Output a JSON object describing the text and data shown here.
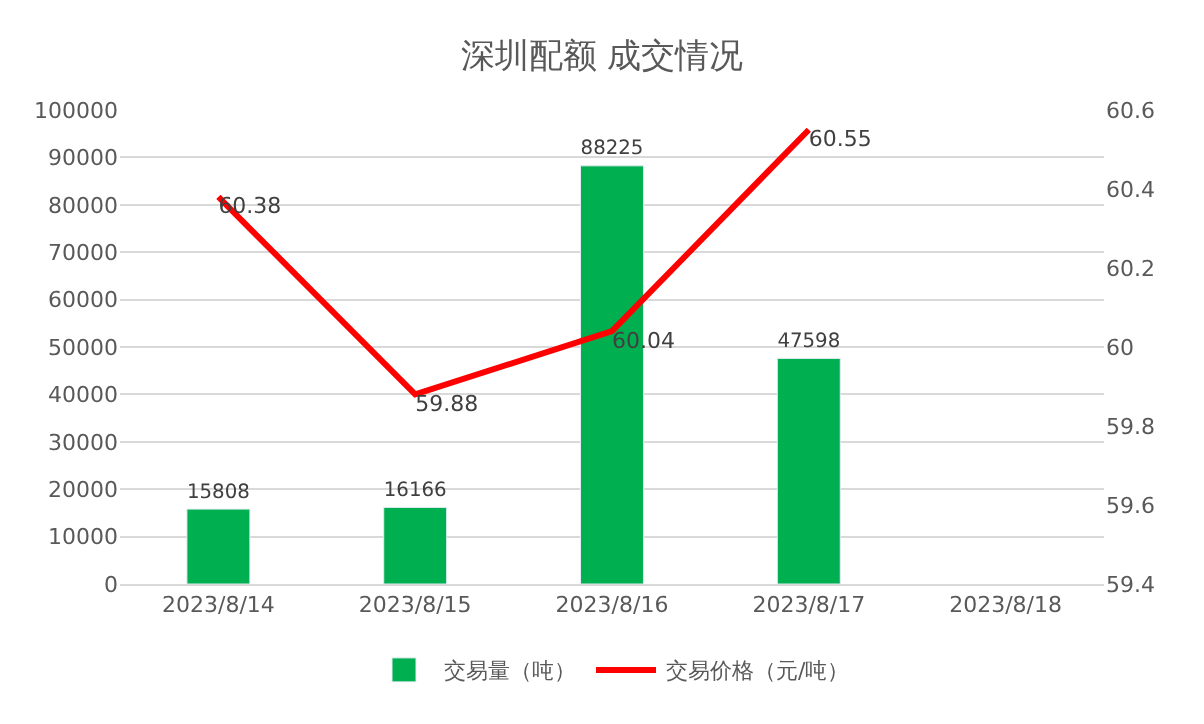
{
  "chart_data": {
    "type": "bar",
    "title": "深圳配额 成交情况",
    "categories": [
      "2023/8/14",
      "2023/8/15",
      "2023/8/16",
      "2023/8/17",
      "2023/8/18"
    ],
    "series": [
      {
        "name": "交易量（吨）",
        "color": "#00b050",
        "values": [
          15808,
          16166,
          88225,
          47598,
          null
        ]
      },
      {
        "name": "交易价格（元/吨）",
        "type": "line",
        "axis": "y2",
        "color": "#ff0000",
        "values": [
          60.38,
          59.88,
          60.04,
          60.55,
          null
        ]
      }
    ],
    "ylim": [
      0,
      100000
    ],
    "yticks": [
      0,
      10000,
      20000,
      30000,
      40000,
      50000,
      60000,
      70000,
      80000,
      90000,
      100000
    ],
    "y2lim": [
      59.4,
      60.6
    ],
    "y2ticks": [
      59.4,
      59.6,
      59.8,
      60,
      60.2,
      60.4,
      60.6
    ],
    "grid": "y",
    "legend": "bottom",
    "data_labels": true,
    "marker": "none"
  }
}
